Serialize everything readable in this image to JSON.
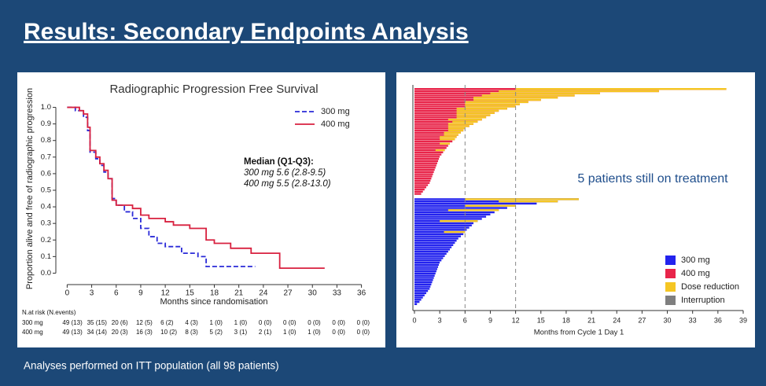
{
  "slide": {
    "title": "Results: Secondary Endpoints Analysis",
    "footnote": "Analyses performed on ITT population (all 98 patients)"
  },
  "chart_data": [
    {
      "type": "step",
      "title": "Radiographic Progression Free Survival",
      "x_label": "Months since randomisation",
      "y_label": "Proportion alive and free of radiographic progression",
      "xlim": [
        -1,
        37
      ],
      "ylim": [
        -0.05,
        1.05
      ],
      "xticks": [
        0,
        3,
        6,
        9,
        12,
        15,
        18,
        21,
        24,
        27,
        30,
        33,
        36
      ],
      "yticks": [
        {
          "value": 0,
          "label": "0.0"
        },
        0.1,
        0.2,
        0.3,
        0.4,
        0.5,
        0.6,
        0.7,
        0.8,
        0.9,
        {
          "value": 1,
          "label": "1.0"
        }
      ],
      "legend": "top-right",
      "series": [
        {
          "name": "300 mg",
          "color": "#2a2ad8",
          "dash": true,
          "x": [
            0,
            1,
            2,
            2.5,
            2.8,
            3.5,
            4,
            4.5,
            5,
            5.5,
            6,
            7,
            8,
            9,
            10,
            11,
            12,
            14,
            16,
            17,
            23
          ],
          "values": [
            1.0,
            0.98,
            0.94,
            0.86,
            0.73,
            0.69,
            0.65,
            0.61,
            0.57,
            0.45,
            0.41,
            0.37,
            0.33,
            0.27,
            0.22,
            0.18,
            0.16,
            0.12,
            0.1,
            0.04,
            0.04
          ]
        },
        {
          "name": "400 mg",
          "color": "#d8203f",
          "dash": false,
          "x": [
            0,
            1.5,
            2,
            2.5,
            2.8,
            3.5,
            4,
            4.5,
            5,
            5.5,
            6,
            8,
            9,
            10,
            12,
            13,
            15,
            17,
            18,
            20,
            22.5,
            26,
            31.5
          ],
          "values": [
            1.0,
            0.98,
            0.96,
            0.88,
            0.74,
            0.7,
            0.66,
            0.62,
            0.57,
            0.44,
            0.41,
            0.39,
            0.35,
            0.33,
            0.31,
            0.29,
            0.27,
            0.2,
            0.18,
            0.15,
            0.12,
            0.03,
            0.03
          ]
        }
      ],
      "annotation": [
        "Median (Q1-Q3):",
        "300 mg 5.6 (2.8-9.5)",
        "400 mg 5.5 (2.8-13.0)"
      ],
      "at_risk": {
        "title": "N.at risk (N.events)",
        "rows": [
          {
            "label": "300 mg",
            "cells": [
              "49 (13)",
              "35 (15)",
              "20 (6)",
              "12 (5)",
              "6 (2)",
              "4 (3)",
              "1 (0)",
              "1 (0)",
              "0 (0)",
              "0 (0)",
              "0 (0)",
              "0 (0)",
              "0 (0)"
            ]
          },
          {
            "label": "400 mg",
            "cells": [
              "49 (13)",
              "34 (14)",
              "20 (3)",
              "16 (3)",
              "10 (2)",
              "8 (3)",
              "5 (2)",
              "3 (1)",
              "2 (1)",
              "1 (0)",
              "1 (0)",
              "0 (0)",
              "0 (0)"
            ]
          }
        ]
      }
    },
    {
      "type": "swimmer",
      "x_label": "Months from Cycle 1 Day 1",
      "xlim": [
        -0.2,
        39.5
      ],
      "xticks": [
        0,
        3,
        6,
        9,
        12,
        15,
        18,
        21,
        24,
        27,
        30,
        33,
        36,
        39
      ],
      "vlines": [
        6,
        12
      ],
      "annotation": "5 patients still on treatment",
      "legend": "bottom-right",
      "reduction": {
        "name": "Dose reduction",
        "color": "#f5c623"
      },
      "interruption": {
        "name": "Interruption",
        "color": "#7f7f7f"
      },
      "series": [
        {
          "name": "400 mg",
          "color": "#e8254a",
          "durations": [
            37,
            29,
            22,
            19,
            17,
            15,
            13.5,
            12.5,
            12,
            11,
            10,
            9.5,
            9,
            8.5,
            8,
            7.5,
            7,
            6.5,
            6,
            5.8,
            5.5,
            5.2,
            5,
            4.8,
            4.5,
            4.2,
            4,
            3.8,
            3.6,
            3.4,
            3.2,
            3,
            2.9,
            2.8,
            2.7,
            2.6,
            2.5,
            2.4,
            2.3,
            2.2,
            2.1,
            2,
            1.9,
            1.8,
            1.6,
            1.4,
            1.2,
            1.0,
            0.8
          ],
          "reduction_start": [
            12,
            10,
            9,
            8,
            7,
            7,
            6,
            6,
            6,
            5,
            5,
            5,
            5,
            5,
            4,
            4.5,
            4,
            4,
            4,
            4,
            3.5,
            3.5,
            3,
            3,
            null,
            3,
            null,
            null,
            2.5,
            null,
            null,
            null,
            null,
            null,
            null,
            null,
            null,
            null,
            null,
            null,
            null,
            null,
            null,
            null,
            null,
            null,
            null,
            null,
            null
          ]
        },
        {
          "name": "300 mg",
          "color": "#2323ee",
          "durations": [
            19.5,
            17,
            14.5,
            12,
            11,
            10,
            9.5,
            9,
            8.5,
            8,
            7.5,
            7,
            6.8,
            6.5,
            6.2,
            6,
            5.8,
            5.5,
            5.2,
            5,
            4.8,
            4.6,
            4.4,
            4.2,
            4,
            3.8,
            3.6,
            3.4,
            3.2,
            3,
            2.9,
            2.8,
            2.7,
            2.6,
            2.5,
            2.4,
            2.3,
            2.2,
            2.1,
            2,
            1.9,
            1.8,
            1.6,
            1.4,
            1.2,
            1,
            0.8,
            0.6,
            0.3
          ],
          "reduction_start": [
            6,
            10,
            null,
            6,
            null,
            4,
            null,
            null,
            null,
            null,
            3,
            null,
            null,
            null,
            null,
            3.5,
            null,
            null,
            null,
            null,
            null,
            null,
            null,
            null,
            null,
            null,
            null,
            null,
            null,
            null,
            null,
            null,
            null,
            null,
            null,
            null,
            null,
            null,
            null,
            null,
            null,
            null,
            null,
            null,
            null,
            null,
            null,
            null,
            null
          ]
        }
      ]
    }
  ]
}
